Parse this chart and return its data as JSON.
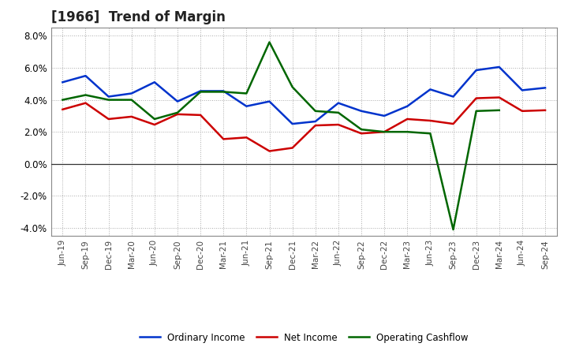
{
  "title": "[1966]  Trend of Margin",
  "x_labels": [
    "Jun-19",
    "Sep-19",
    "Dec-19",
    "Mar-20",
    "Jun-20",
    "Sep-20",
    "Dec-20",
    "Mar-21",
    "Jun-21",
    "Sep-21",
    "Dec-21",
    "Mar-22",
    "Jun-22",
    "Sep-22",
    "Dec-22",
    "Mar-23",
    "Jun-23",
    "Sep-23",
    "Dec-23",
    "Mar-24",
    "Jun-24",
    "Sep-24"
  ],
  "ordinary_income": [
    5.1,
    5.5,
    4.2,
    4.4,
    5.1,
    3.9,
    4.55,
    4.55,
    3.6,
    3.9,
    2.5,
    2.65,
    3.8,
    3.3,
    3.0,
    3.6,
    4.65,
    4.2,
    5.85,
    6.05,
    4.6,
    4.75
  ],
  "net_income": [
    3.4,
    3.8,
    2.8,
    2.95,
    2.45,
    3.1,
    3.05,
    1.55,
    1.65,
    0.8,
    1.0,
    2.4,
    2.45,
    1.9,
    2.0,
    2.8,
    2.7,
    2.5,
    4.1,
    4.15,
    3.3,
    3.35
  ],
  "operating_cashflow": [
    4.0,
    4.3,
    4.0,
    4.0,
    2.8,
    3.2,
    4.5,
    4.5,
    4.4,
    7.6,
    4.8,
    3.3,
    3.2,
    2.15,
    2.0,
    2.0,
    1.9,
    -4.1,
    3.3,
    3.35,
    null,
    null
  ],
  "ylim": [
    -4.5,
    8.5
  ],
  "yticks": [
    -4.0,
    -2.0,
    0.0,
    2.0,
    4.0,
    6.0,
    8.0
  ],
  "colors": {
    "ordinary_income": "#0033CC",
    "net_income": "#CC0000",
    "operating_cashflow": "#006600"
  },
  "background_color": "#FFFFFF",
  "grid_color": "#AAAAAA",
  "legend": [
    "Ordinary Income",
    "Net Income",
    "Operating Cashflow"
  ],
  "title_color": "#222222",
  "tick_color": "#444444"
}
